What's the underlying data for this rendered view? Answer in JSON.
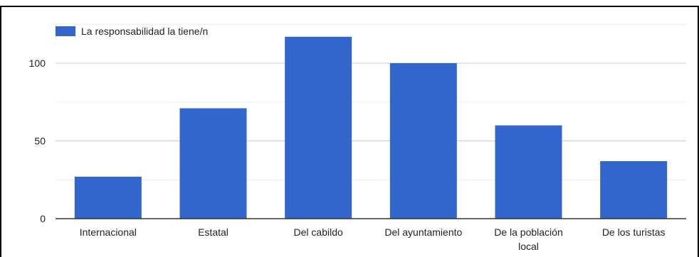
{
  "chart_data": {
    "type": "bar",
    "categories": [
      "Internacional",
      "Estatal",
      "Del cabildo",
      "Del ayuntamiento",
      [
        "De la población",
        "local"
      ],
      "De los turistas"
    ],
    "series": [
      {
        "name": "La responsabilidad la tiene/n",
        "values": [
          27,
          71,
          117,
          100,
          60,
          37
        ],
        "color": "#3366cc"
      }
    ],
    "yticks": [
      0,
      50,
      100
    ],
    "ylim": [
      0,
      125
    ],
    "grid": true,
    "legend": "top-left"
  }
}
